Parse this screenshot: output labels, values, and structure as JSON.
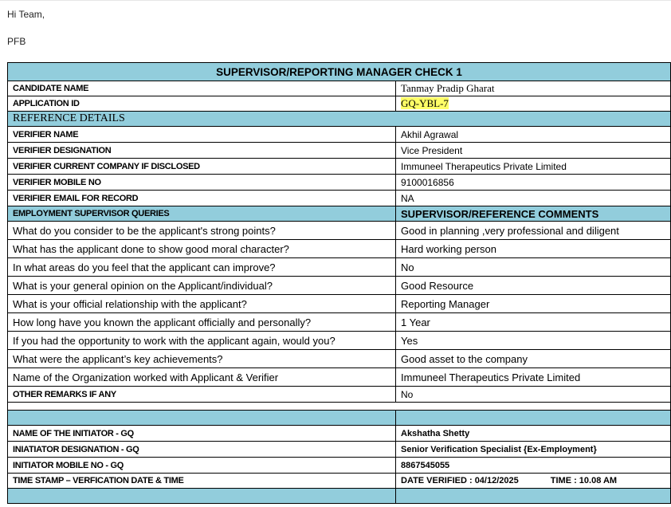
{
  "email": {
    "greeting": "Hi Team,",
    "pfb": "PFB"
  },
  "table": {
    "title": "SUPERVISOR/REPORTING MANAGER CHECK 1",
    "candidate_label": "CANDIDATE  NAME",
    "candidate_value": "Tanmay Pradip Gharat",
    "appid_label": "APPLICATION ID",
    "appid_value": "GQ-YBL-7",
    "reference_header": "REFERENCE DETAILS",
    "verifier": [
      {
        "label": "VERIFIER NAME",
        "value": "Akhil Agrawal"
      },
      {
        "label": "VERIFIER DESIGNATION",
        "value": "Vice President"
      },
      {
        "label": "VERIFIER CURRENT COMPANY IF DISCLOSED",
        "value": "Immuneel Therapeutics Private Limited"
      },
      {
        "label": "VERIFIER MOBILE NO",
        "value": "9100016856"
      },
      {
        "label": "VERIFIER EMAIL FOR RECORD",
        "value": "NA"
      }
    ],
    "queries_header": "EMPLOYMENT SUPERVISOR QUERIES",
    "comments_header": "SUPERVISOR/REFERENCE COMMENTS",
    "queries": [
      {
        "q": "What do you consider to be the applicant's strong points?",
        "a": "Good in planning ,very professional and diligent"
      },
      {
        "q": "What has the applicant done to show good moral character?",
        "a": "Hard working person"
      },
      {
        "q": "In what areas do you feel that the applicant can improve?",
        "a": "No"
      },
      {
        "q": "What is your general opinion on the Applicant/individual?",
        "a": "Good Resource"
      },
      {
        "q": "What is your official relationship with the applicant?",
        "a": "Reporting Manager"
      },
      {
        "q": "How long have you known the applicant officially and personally?",
        "a": "1 Year"
      },
      {
        "q": "If you had the opportunity to work with the applicant again, would you?",
        "a": "Yes"
      },
      {
        "q": "What were the applicant’s key achievements?",
        "a": "Good asset to the company"
      },
      {
        "q": "Name of the Organization worked with Applicant & Verifier",
        "a": "Immuneel Therapeutics Private Limited"
      }
    ],
    "other_remarks_label": "OTHER REMARKS IF ANY",
    "other_remarks_value": "No",
    "initiator": [
      {
        "label": "NAME OF THE INITIATOR - GQ",
        "value": "Akshatha Shetty"
      },
      {
        "label": "INIATIATOR DESIGNATION - GQ",
        "value": "Senior Verification Specialist {Ex-Employment}"
      },
      {
        "label": "INITIATOR MOBILE NO - GQ",
        "value": "8867545055"
      }
    ],
    "timestamp_label": "TIME STAMP – VERFICATION DATE & TIME",
    "date_verified": "DATE  VERIFIED : 04/12/2025",
    "time_verified": "TIME : 10.08 AM"
  },
  "colors": {
    "header_blue": "#92cddc",
    "highlight": "#ffff66"
  }
}
